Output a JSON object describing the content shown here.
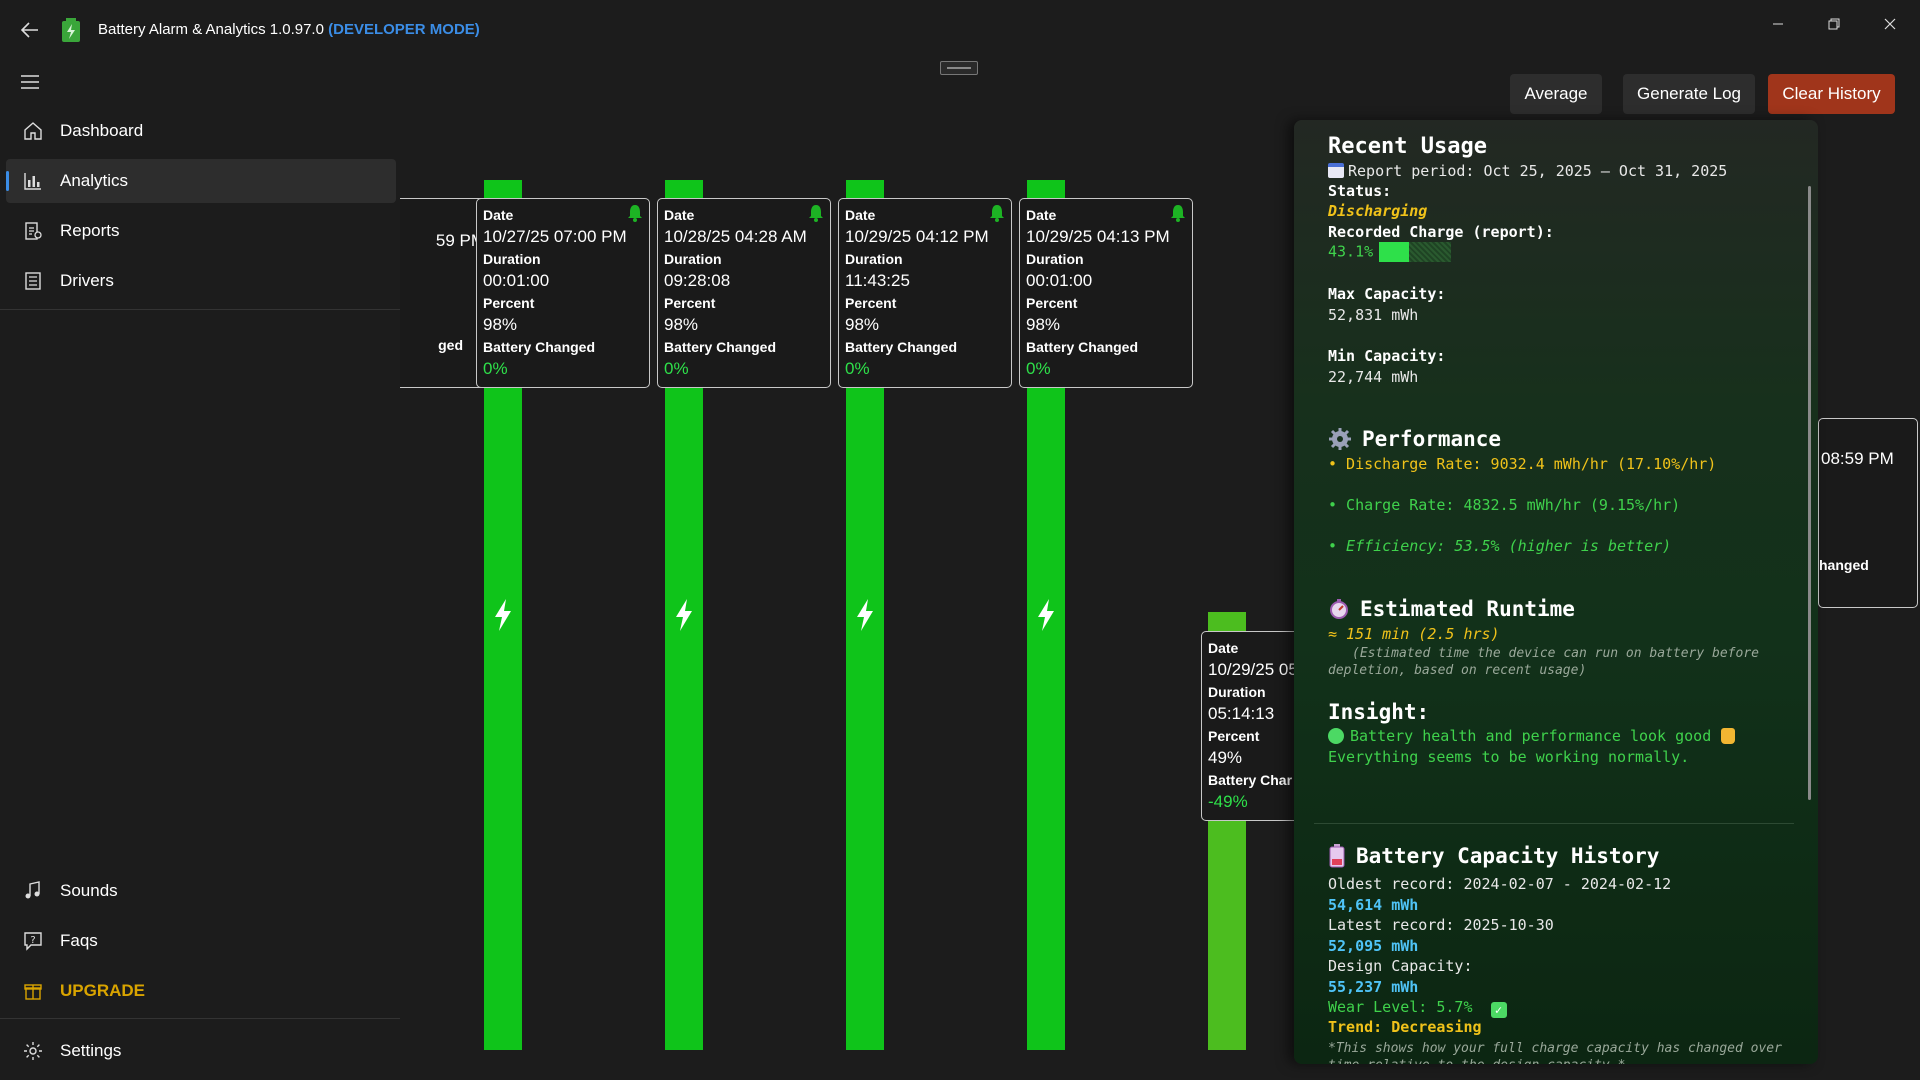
{
  "app": {
    "title": "Battery Alarm & Analytics 1.0.97.0",
    "mode": "(DEVELOPER MODE)"
  },
  "sidebar": {
    "top_items": [
      {
        "label": "Dashboard",
        "icon": "home-icon"
      },
      {
        "label": "Analytics",
        "icon": "analytics-icon",
        "active": true
      },
      {
        "label": "Reports",
        "icon": "reports-icon"
      },
      {
        "label": "Drivers",
        "icon": "drivers-icon"
      }
    ],
    "bottom_items": [
      {
        "label": "Sounds",
        "icon": "music-note-icon"
      },
      {
        "label": "Faqs",
        "icon": "faq-icon"
      },
      {
        "label": "UPGRADE",
        "icon": "gift-icon"
      },
      {
        "label": "Settings",
        "icon": "gear-icon"
      }
    ]
  },
  "toolbar": {
    "average": "Average",
    "generate_log": "Generate Log",
    "clear_history": "Clear History"
  },
  "cards": {
    "labels": {
      "date": "Date",
      "duration": "Duration",
      "percent": "Percent",
      "changed": "Battery Changed"
    },
    "partial_left": {
      "date_tail": "59 PM",
      "changed_tail": "ged"
    },
    "items": [
      {
        "date": "10/27/25 07:00 PM",
        "duration": "00:01:00",
        "percent": "98%",
        "changed": "0%"
      },
      {
        "date": "10/28/25 04:28 AM",
        "duration": "09:28:08",
        "percent": "98%",
        "changed": "0%"
      },
      {
        "date": "10/29/25 04:12 PM",
        "duration": "11:43:25",
        "percent": "98%",
        "changed": "0%"
      },
      {
        "date": "10/29/25 04:13 PM",
        "duration": "00:01:00",
        "percent": "98%",
        "changed": "0%"
      },
      {
        "date": "10/29/25 05",
        "duration": "05:14:13",
        "percent": "49%",
        "changed": "-49%",
        "changed_label": "Battery Char"
      }
    ],
    "partial_right": {
      "date_tail": "08:59 PM",
      "changed_tail": "hanged"
    }
  },
  "report": {
    "title": "Recent Usage",
    "period": "Report period: Oct 25, 2025 – Oct 31, 2025",
    "status_label": "Status:",
    "status_value": "Discharging",
    "recorded_label": "Recorded Charge (report):",
    "recorded_value": "43.1%",
    "max_label": "Max Capacity:",
    "max_value": "52,831 mWh",
    "min_label": "Min Capacity:",
    "min_value": "22,744 mWh",
    "performance_title": "Performance",
    "discharge_rate": "• Discharge Rate: 9032.4 mWh/hr (17.10%/hr)",
    "charge_rate": "• Charge Rate: 4832.5 mWh/hr (9.15%/hr)",
    "efficiency": "• Efficiency: 53.5% (higher is better)",
    "runtime_title": "Estimated Runtime",
    "runtime_value": "≈ 151 min (2.5 hrs)",
    "runtime_note": "(Estimated time the device can run on battery before depletion, based on recent usage)",
    "insight_title": "Insight:",
    "insight_line1": "Battery health and performance look good",
    "insight_line2": "Everything seems to be working normally.",
    "history_title": "Battery Capacity History",
    "oldest_label": "Oldest record: 2024-02-07 - 2024-02-12",
    "oldest_value": "54,614 mWh",
    "latest_label": "Latest record: 2025-10-30",
    "latest_value": "52,095 mWh",
    "design_label": "Design Capacity:",
    "design_value": "55,237 mWh",
    "wear_level": "Wear Level: 5.7%",
    "trend": "Trend: Decreasing",
    "footnote": "*This shows how your full charge capacity has changed over time relative to the design capacity.*"
  },
  "colors": {
    "accent": "#3b8de6",
    "bar_green": "#0fc41a",
    "upgrade": "#d9a400",
    "clear_history_bg": "#a0351b"
  }
}
